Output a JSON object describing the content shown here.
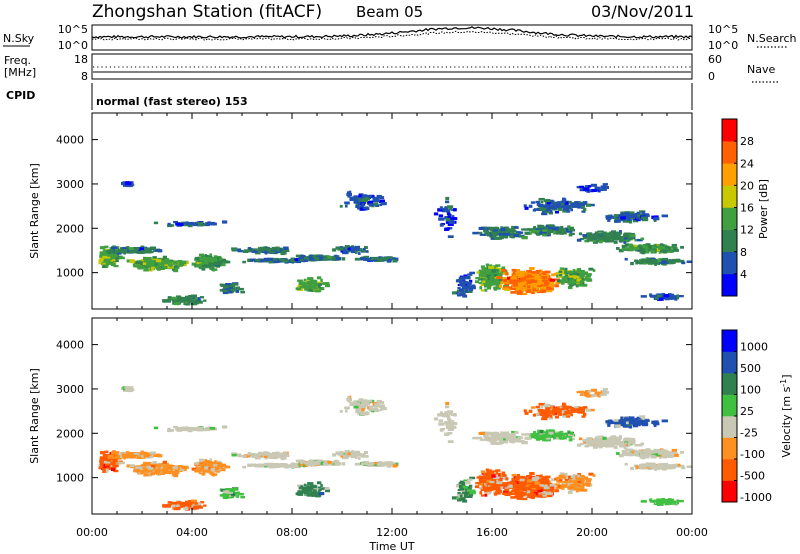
{
  "header": {
    "station": "Zhongshan Station (fitACF)",
    "beam": "Beam 05",
    "date": "03/Nov/2011"
  },
  "noise_panel": {
    "left_label": "N.Sky",
    "right_label": "N.Search",
    "left_ticks": [
      "10^5",
      "10^0"
    ],
    "right_ticks": [
      "10^5",
      "10^0"
    ]
  },
  "freq_panel": {
    "left_label_line1": "Freq.",
    "left_label_line2": "[MHz]",
    "right_label": "Nave",
    "left_ticks": [
      "18",
      "8"
    ],
    "right_ticks": [
      "60",
      "0"
    ]
  },
  "cpid_panel": {
    "label": "CPID",
    "mode_text": "normal (fast stereo) 153"
  },
  "colors": {
    "power": [
      "#0000ff",
      "#2050b0",
      "#308050",
      "#40a040",
      "#c8c800",
      "#ffa000",
      "#ff6000",
      "#ff0000"
    ],
    "velocity": [
      "#ff0000",
      "#ff5a00",
      "#ff9020",
      "#c8c8b4",
      "#40c040",
      "#308050",
      "#2050b0",
      "#0000ff"
    ]
  },
  "chart_data": [
    {
      "type": "heatmap",
      "name": "power",
      "ylabel": "Slant Range [km]",
      "ylim": [
        180,
        4600
      ],
      "y_ticks": [
        "1000",
        "2000",
        "3000",
        "4000"
      ],
      "colorbar_label": "Power [dB]",
      "colorbar_ticks": [
        "4",
        "8",
        "12",
        "16",
        "20",
        "24",
        "28"
      ],
      "colorbar_range": [
        0,
        32
      ]
    },
    {
      "type": "heatmap",
      "name": "velocity",
      "ylabel": "Slant Range [km]",
      "ylim": [
        180,
        4600
      ],
      "y_ticks": [
        "1000",
        "2000",
        "3000",
        "4000"
      ],
      "colorbar_label_main": "Velocity [m s",
      "colorbar_label_exp": "-1",
      "colorbar_label_close": "]",
      "colorbar_ticks": [
        "1000",
        "500",
        "100",
        "25",
        "-25",
        "-100",
        "-500",
        "-1000"
      ]
    }
  ],
  "x_axis": {
    "label": "Time UT",
    "ticks": [
      "00:00",
      "04:00",
      "08:00",
      "12:00",
      "16:00",
      "20:00",
      "00:00"
    ],
    "xlim_hours": [
      0,
      24
    ]
  }
}
